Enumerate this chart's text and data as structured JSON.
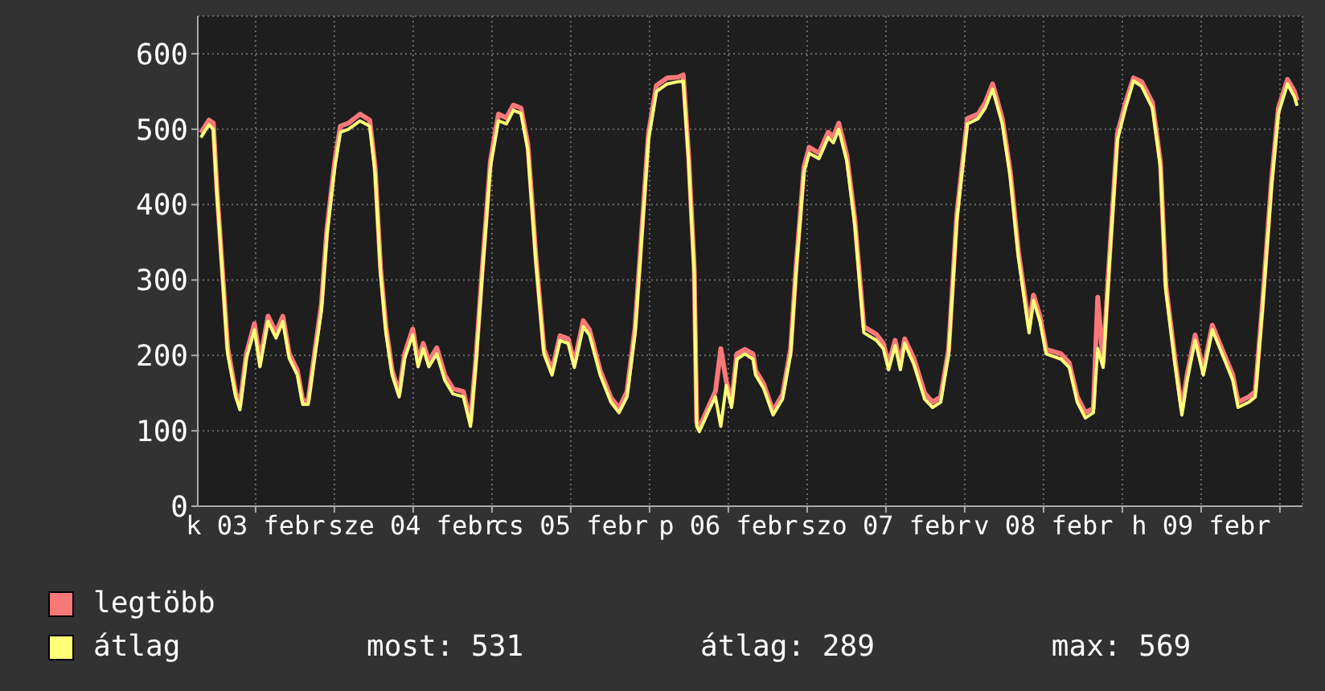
{
  "chart_data": {
    "type": "line",
    "x": [
      "--02-03T03:40",
      "--02-03T04:54",
      "--02-03T05:34",
      "--02-03T06:07",
      "--02-03T06:56",
      "--02-03T07:45",
      "--02-03T08:59",
      "--02-03T09:37",
      "--02-03T10:36",
      "--02-03T11:50",
      "--02-03T12:40",
      "--02-03T13:54",
      "--02-03T15:07",
      "--02-03T16:09",
      "--02-03T17:08",
      "--02-03T18:22",
      "--02-03T19:11",
      "--02-03T20:01",
      "--02-03T21:04",
      "--02-03T22:02",
      "--02-03T22:51",
      "--02-04T00:04",
      "--02-04T00:55",
      "--02-04T02:08",
      "--02-04T03:55",
      "--02-04T05:23",
      "--02-04T06:12",
      "--02-04T07:02",
      "--02-04T07:51",
      "--02-04T08:48",
      "--02-04T09:52",
      "--02-04T10:42",
      "--02-04T11:56",
      "--02-04T12:45",
      "--02-04T13:32",
      "--02-04T14:23",
      "--02-04T15:36",
      "--02-04T16:49",
      "--02-04T18:03",
      "--02-04T19:39",
      "--02-04T20:44",
      "--02-04T21:33",
      "--02-04T22:32",
      "--02-04T23:46",
      "--02-05T00:59",
      "--02-05T02:12",
      "--02-05T03:16",
      "--02-05T04:25",
      "--02-05T05:28",
      "--02-05T06:42",
      "--02-05T07:55",
      "--02-05T09:09",
      "--02-05T10:22",
      "--02-05T11:36",
      "--02-05T12:33",
      "--02-05T13:54",
      "--02-05T14:51",
      "--02-05T16:29",
      "--02-05T18:07",
      "--02-05T19:21",
      "--02-05T20:34",
      "--02-05T21:48",
      "--02-05T22:36",
      "--02-05T23:50",
      "--02-06T01:03",
      "--02-06T02:41",
      "--02-06T04:21",
      "--02-06T05:08",
      "--02-06T05:57",
      "--02-06T06:48",
      "--02-06T07:11",
      "--02-06T07:35",
      "--02-06T09:14",
      "--02-06T10:02",
      "--02-06T10:51",
      "--02-06T11:41",
      "--02-06T12:29",
      "--02-06T13:18",
      "--02-06T14:31",
      "--02-06T15:45",
      "--02-06T16:09",
      "--02-06T17:23",
      "--02-06T18:48",
      "--02-06T20:15",
      "--02-06T21:29",
      "--02-06T22:18",
      "--02-06T23:31",
      "--02-07T00:19",
      "--02-07T01:48",
      "--02-07T03:12",
      "--02-07T03:59",
      "--02-07T04:49",
      "--02-07T06:03",
      "--02-07T07:16",
      "--02-07T08:38",
      "--02-07T10:32",
      "--02-07T11:36",
      "--02-07T12:24",
      "--02-07T13:24",
      "--02-07T14:12",
      "--02-07T14:51",
      "--02-07T16:15",
      "--02-07T17:53",
      "--02-07T19:06",
      "--02-07T20:20",
      "--02-07T21:33",
      "--02-07T22:47",
      "--02-08T00:24",
      "--02-08T02:02",
      "--02-08T03:07",
      "--02-08T04:15",
      "--02-08T05:43",
      "--02-08T06:56",
      "--02-08T08:10",
      "--02-08T09:48",
      "--02-08T10:28",
      "--02-08T11:27",
      "--02-08T12:24",
      "--02-08T14:41",
      "--02-08T15:55",
      "--02-08T17:08",
      "--02-08T18:22",
      "--02-08T19:35",
      "--02-08T20:15",
      "--02-08T21:04",
      "--02-08T22:02",
      "--02-08T23:15",
      "--02-09T00:29",
      "--02-09T01:42",
      "--02-09T02:56",
      "--02-09T04:35",
      "--02-09T05:48",
      "--02-09T06:37",
      "--02-09T08:01",
      "--02-09T09:04",
      "--02-09T09:52",
      "--02-09T11:05",
      "--02-09T12:20",
      "--02-09T13:42",
      "--02-09T15:12",
      "--02-09T16:49",
      "--02-09T17:38",
      "--02-09T19:16",
      "--02-09T20:15",
      "--02-09T21:19",
      "--02-09T22:42",
      "--02-09T23:46",
      "--02-10T01:09",
      "--02-10T02:12",
      "--02-10T02:37"
    ],
    "series": [
      {
        "name": "legtöbb",
        "color": "#f87878",
        "values": [
          495,
          512,
          508,
          420,
          315,
          210,
          150,
          134,
          202,
          242,
          192,
          252,
          230,
          252,
          202,
          180,
          140,
          140,
          208,
          268,
          366,
          458,
          504,
          508,
          520,
          512,
          450,
          316,
          238,
          180,
          150,
          202,
          235,
          192,
          216,
          192,
          210,
          174,
          156,
          152,
          112,
          195,
          316,
          458,
          520,
          515,
          532,
          528,
          480,
          330,
          208,
          180,
          226,
          222,
          190,
          246,
          234,
          180,
          144,
          130,
          152,
          238,
          338,
          494,
          558,
          568,
          569,
          572,
          465,
          316,
          112,
          104,
          137,
          152,
          209,
          166,
          137,
          202,
          208,
          202,
          180,
          162,
          126,
          148,
          208,
          316,
          450,
          476,
          468,
          496,
          490,
          508,
          465,
          380,
          238,
          228,
          216,
          188,
          220,
          188,
          222,
          196,
          150,
          138,
          145,
          208,
          386,
          514,
          520,
          535,
          560,
          514,
          444,
          338,
          238,
          280,
          252,
          208,
          202,
          190,
          145,
          124,
          130,
          277,
          190,
          330,
          494,
          535,
          568,
          563,
          535,
          456,
          294,
          195,
          128,
          174,
          227,
          180,
          240,
          208,
          174,
          138,
          145,
          152,
          266,
          430,
          528,
          566,
          550,
          538
        ]
      },
      {
        "name": "átlag",
        "color": "#ffff78",
        "values": [
          489,
          506,
          500,
          415,
          309,
          202,
          145,
          128,
          196,
          234,
          185,
          245,
          223,
          245,
          196,
          174,
          135,
          135,
          202,
          260,
          358,
          450,
          496,
          500,
          511,
          504,
          443,
          309,
          230,
          174,
          145,
          196,
          227,
          185,
          209,
          185,
          202,
          167,
          149,
          145,
          106,
          188,
          309,
          450,
          511,
          507,
          525,
          521,
          472,
          323,
          202,
          174,
          220,
          216,
          184,
          238,
          227,
          174,
          138,
          124,
          145,
          230,
          330,
          486,
          550,
          560,
          563,
          564,
          457,
          309,
          106,
          99,
          131,
          145,
          106,
          160,
          131,
          195,
          202,
          195,
          174,
          156,
          121,
          142,
          202,
          309,
          443,
          468,
          461,
          489,
          482,
          500,
          457,
          372,
          230,
          220,
          209,
          181,
          213,
          181,
          216,
          188,
          142,
          131,
          138,
          202,
          379,
          507,
          514,
          528,
          553,
          507,
          436,
          330,
          230,
          273,
          245,
          202,
          195,
          184,
          138,
          117,
          124,
          209,
          184,
          323,
          486,
          528,
          564,
          557,
          528,
          450,
          287,
          188,
          121,
          167,
          220,
          174,
          234,
          202,
          167,
          131,
          138,
          145,
          259,
          422,
          521,
          560,
          543,
          531
        ]
      }
    ],
    "xlim": [
      "--02-03T03:12",
      "--02-10T03:26"
    ],
    "xticks": [
      {
        "value": "--02-03T12:00",
        "label": "k 03 febr"
      },
      {
        "value": "--02-04T00:00",
        "label": null
      },
      {
        "value": "--02-04T12:00",
        "label": "sze 04 febr"
      },
      {
        "value": "--02-05T00:00",
        "label": null
      },
      {
        "value": "--02-05T12:00",
        "label": "cs 05 febr"
      },
      {
        "value": "--02-06T00:00",
        "label": null
      },
      {
        "value": "--02-06T12:00",
        "label": "p 06 febr"
      },
      {
        "value": "--02-07T00:00",
        "label": null
      },
      {
        "value": "--02-07T12:00",
        "label": "szo 07 febr"
      },
      {
        "value": "--02-08T00:00",
        "label": null
      },
      {
        "value": "--02-08T12:00",
        "label": "v 08 febr"
      },
      {
        "value": "--02-09T00:00",
        "label": null
      },
      {
        "value": "--02-09T12:00",
        "label": "h 09 febr"
      },
      {
        "value": "--02-10T00:00",
        "label": null
      }
    ],
    "ylim": [
      0,
      650
    ],
    "yticks": [
      0,
      100,
      200,
      300,
      400,
      500,
      600
    ],
    "grid": true,
    "legend": "bottom",
    "annotations": [
      "most: 531",
      "átlag: 289",
      "max: 569"
    ]
  }
}
